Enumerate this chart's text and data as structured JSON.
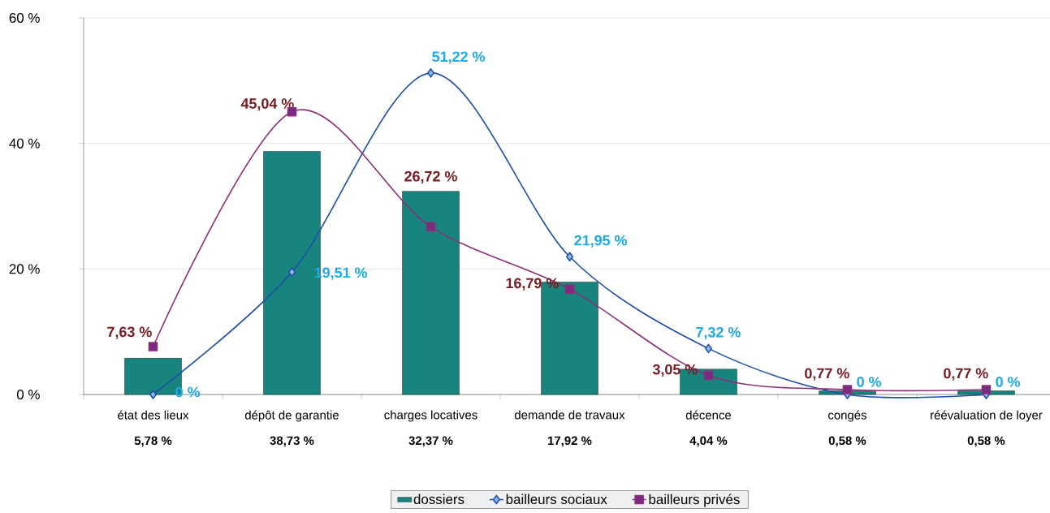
{
  "chart_data": {
    "type": "bar",
    "categories": [
      "état des lieux",
      "dépôt de garantie",
      "charges locatives",
      "demande de travaux",
      "décence",
      "congés",
      "réévaluation de loyer"
    ],
    "series": [
      {
        "name": "dossiers",
        "color": "#17847e",
        "values": [
          5.78,
          38.73,
          32.37,
          17.92,
          4.04,
          0.58,
          0.58
        ],
        "value_labels": [
          "5,78 %",
          "38,73 %",
          "32,37 %",
          "17,92 %",
          "4,04 %",
          "0,58 %",
          "0,58 %"
        ]
      },
      {
        "name": "bailleurs sociaux",
        "type": "line",
        "color": "#1f4fa8",
        "marker": "diamond",
        "line_style": "solid",
        "values": [
          0,
          19.51,
          51.22,
          21.95,
          7.32,
          0,
          0
        ],
        "value_labels": [
          "0 %",
          "19,51 %",
          "51,22 %",
          "21,95 %",
          "7,32 %",
          "0 %",
          "0 %"
        ]
      },
      {
        "name": "bailleurs privés",
        "type": "line",
        "color": "#8b3078",
        "marker": "square",
        "line_style": "solid",
        "values": [
          7.63,
          45.04,
          26.72,
          16.79,
          3.05,
          0.77,
          0.77
        ],
        "value_labels": [
          "7,63 %",
          "45,04 %",
          "26,72 %",
          "16,79 %",
          "3,05 %",
          "0,77 %",
          "0,77 %"
        ]
      }
    ],
    "ylim": [
      0,
      60
    ],
    "yticks": [
      {
        "value": 0,
        "label": "0 %"
      },
      {
        "value": 20,
        "label": "20 %"
      },
      {
        "value": 40,
        "label": "40 %"
      },
      {
        "value": 60,
        "label": "60 %"
      }
    ],
    "grid": "y",
    "legend": "bottom"
  }
}
